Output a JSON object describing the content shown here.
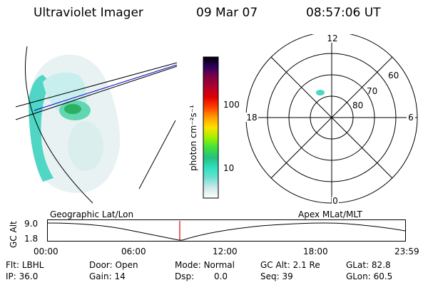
{
  "header": {
    "title": "Ultraviolet Imager",
    "date": "09 Mar 07",
    "time": "08:57:06 UT"
  },
  "colorbar": {
    "label": "photon cm⁻²s⁻¹",
    "ticks": [
      "100",
      "10"
    ],
    "colors": [
      "#ffffff",
      "#cfe9ea",
      "#6fe0d0",
      "#2ee0c0",
      "#28c080",
      "#40e040",
      "#a0f000",
      "#ffe000",
      "#ffa000",
      "#ff4000",
      "#e00000",
      "#b00030",
      "#800040",
      "#300060",
      "#000000"
    ]
  },
  "polar": {
    "mlt_labels": {
      "top": "12",
      "left": "18",
      "right": "6",
      "bottom": "0"
    },
    "lat_labels": [
      "60",
      "70",
      "80"
    ]
  },
  "timeline": {
    "ylabel": "GC Alt",
    "ymax": "9.0",
    "ymin": "1.8",
    "left_title": "Geographic Lat/Lon",
    "right_title": "Apex MLat/MLT",
    "xticks": [
      "00:00",
      "06:00",
      "12:00",
      "18:00",
      "23:59"
    ],
    "marker_color": "#e00000"
  },
  "info": {
    "row1": [
      {
        "label": "Flt:",
        "value": "LBHL"
      },
      {
        "label": "Door:",
        "value": "Open"
      },
      {
        "label": "Mode:",
        "value": "Normal"
      },
      {
        "label": "GC Alt:",
        "value": "2.1 Re"
      },
      {
        "label": "GLat:",
        "value": "82.8"
      }
    ],
    "row2": [
      {
        "label": "IP:",
        "value": "36.0"
      },
      {
        "label": "Gain:",
        "value": "14"
      },
      {
        "label": "Dsp:",
        "value": "0.0"
      },
      {
        "label": "Seq:",
        "value": "39"
      },
      {
        "label": "GLon:",
        "value": "60.5"
      }
    ]
  }
}
